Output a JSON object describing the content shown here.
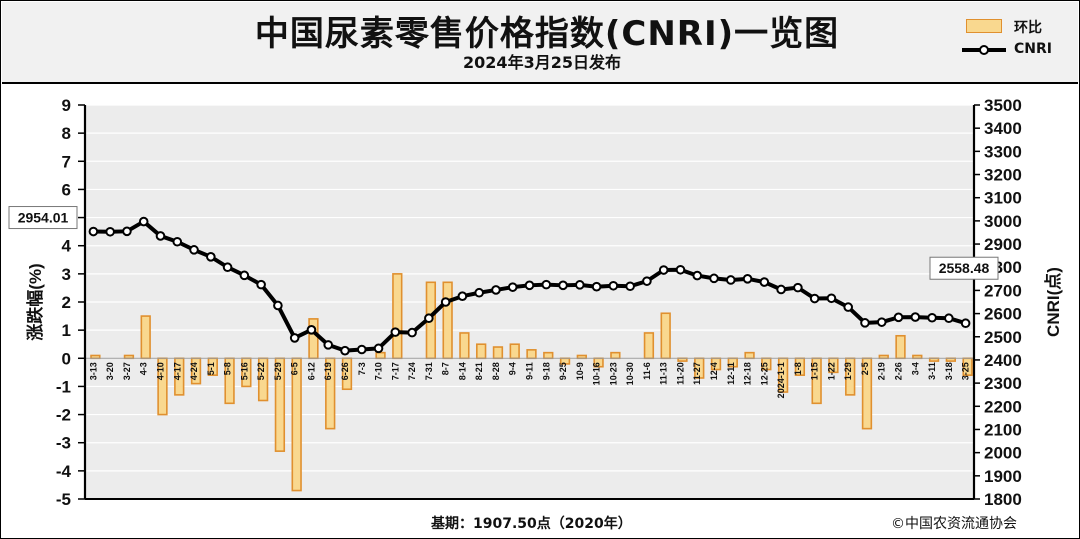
{
  "header": {
    "title": "中国尿素零售价格指数(CNRI)一览图",
    "subtitle": "2024年3月25日发布"
  },
  "legend": {
    "bar_label": "环比",
    "line_label": "CNRI"
  },
  "footer": {
    "base": "基期：1907.50点（2020年）",
    "copyright": "©中国农资流通协会"
  },
  "colors": {
    "bar_fill": "#f9d88f",
    "bar_edge": "#e0902f",
    "line": "#000000",
    "marker_fill": "#ffffff",
    "plot_bg": "#ececec",
    "grid": "#ffffff",
    "header_bg": "#f1f1f1"
  },
  "chart_data": {
    "type": "bar+line",
    "ylabel_left": "涨跌幅(%)",
    "ylabel_right": "CNRI(点)",
    "ylim_left": [
      -5,
      9
    ],
    "ylim_right": [
      1800,
      3500
    ],
    "yticks_left": [
      "9",
      "8",
      "7",
      "6",
      "5",
      "4",
      "3",
      "2",
      "1",
      "0",
      "-1",
      "-2",
      "-3",
      "-4",
      "-5"
    ],
    "yticks_right": [
      "3500",
      "3400",
      "3300",
      "3200",
      "3100",
      "3000",
      "2900",
      "2800",
      "2700",
      "2600",
      "2500",
      "2400",
      "2300",
      "2200",
      "2100",
      "2000",
      "1900",
      "1800"
    ],
    "categories": [
      "3-13",
      "3-20",
      "3-27",
      "4-3",
      "4-10",
      "4-17",
      "4-24",
      "5-1",
      "5-8",
      "5-16",
      "5-22",
      "5-29",
      "6-5",
      "6-12",
      "6-19",
      "6-26",
      "7-3",
      "7-10",
      "7-17",
      "7-24",
      "7-31",
      "8-7",
      "8-14",
      "8-21",
      "8-28",
      "9-4",
      "9-11",
      "9-18",
      "9-25",
      "10-9",
      "10-16",
      "10-23",
      "10-30",
      "11-6",
      "11-13",
      "11-20",
      "11-27",
      "12-4",
      "12-11",
      "12-18",
      "12-25",
      "2024-1-1",
      "1-8",
      "1-15",
      "1-22",
      "1-29",
      "2-5",
      "2-19",
      "2-26",
      "3-4",
      "3-11",
      "3-18",
      "3-25"
    ],
    "series": [
      {
        "name": "环比",
        "kind": "bar",
        "axis": "left",
        "values": [
          0.1,
          0,
          0.1,
          1.5,
          -2,
          -1.3,
          -0.9,
          -0.6,
          -1.6,
          -1,
          -1.5,
          -3.3,
          -4.7,
          1.4,
          -2.5,
          -1.1,
          0,
          0.2,
          3,
          0,
          2.7,
          2.7,
          0.9,
          0.5,
          0.4,
          0.5,
          0.3,
          0.2,
          -0.2,
          0.1,
          -0.3,
          0.2,
          0,
          0.9,
          1.6,
          -0.1,
          -0.7,
          -0.4,
          -0.3,
          0.2,
          -0.4,
          -1.2,
          -0.6,
          -1.6,
          -0.5,
          -1.3,
          -2.5,
          0.1,
          0.8,
          0.1,
          -0.1,
          -0.1,
          -0.6
        ]
      },
      {
        "name": "CNRI",
        "kind": "line",
        "axis": "right",
        "values": [
          2954.01,
          2953,
          2955,
          2997,
          2935,
          2910,
          2875,
          2845,
          2800,
          2765,
          2725,
          2635,
          2495,
          2530,
          2465,
          2440,
          2445,
          2450,
          2520,
          2518,
          2580,
          2650,
          2675,
          2690,
          2702,
          2714,
          2722,
          2725,
          2722,
          2724,
          2716,
          2720,
          2718,
          2740,
          2788,
          2789,
          2764,
          2752,
          2745,
          2750,
          2736,
          2704,
          2712,
          2665,
          2666,
          2628,
          2560,
          2563,
          2584,
          2585,
          2582,
          2580,
          2558.48
        ]
      }
    ],
    "annotations": [
      {
        "text": "2954.01",
        "point": "first"
      },
      {
        "text": "2558.48",
        "point": "last"
      }
    ],
    "grid": true
  }
}
